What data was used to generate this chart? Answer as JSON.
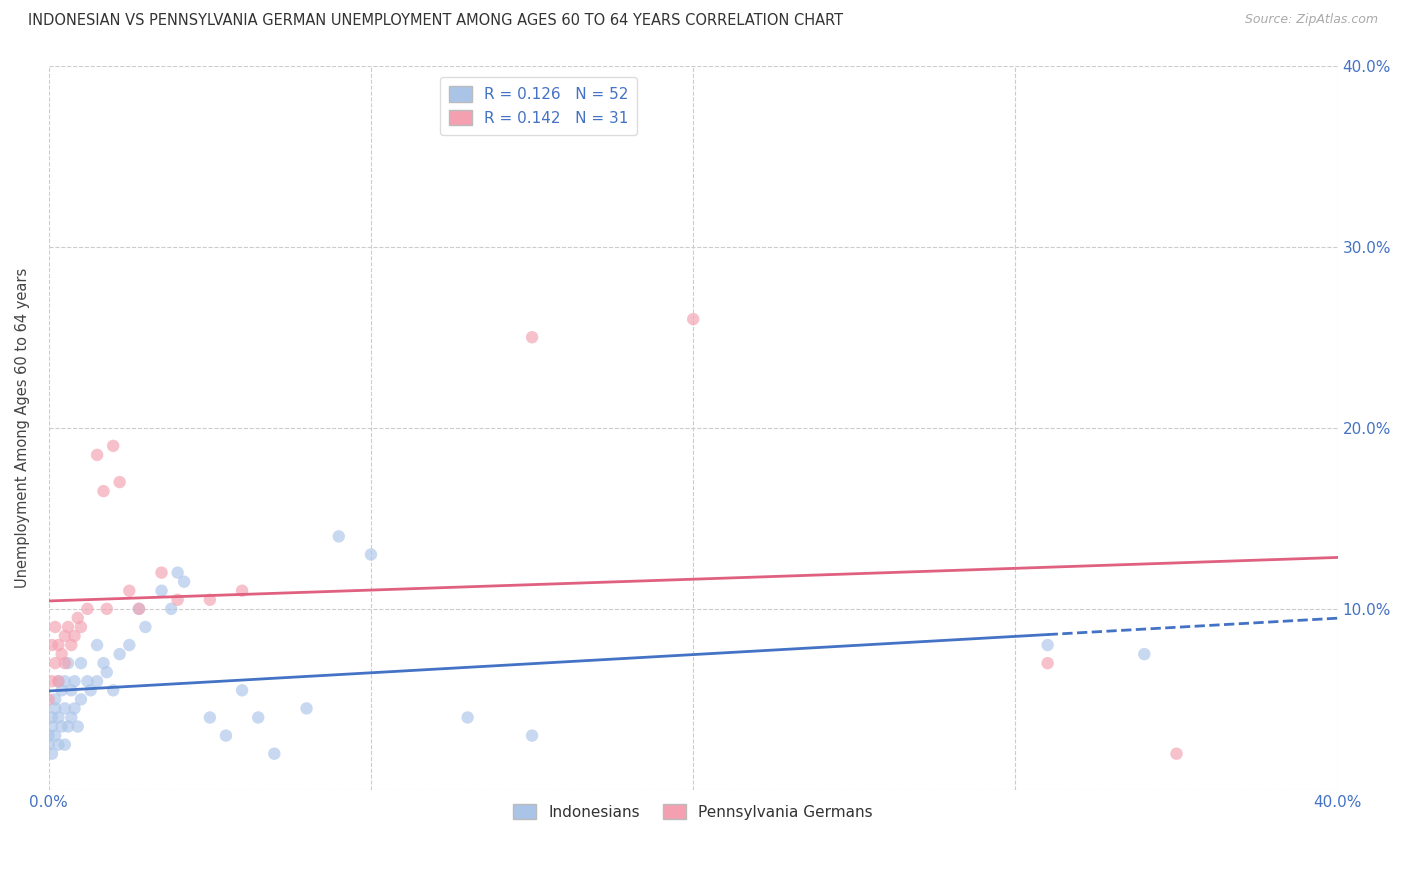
{
  "title": "INDONESIAN VS PENNSYLVANIA GERMAN UNEMPLOYMENT AMONG AGES 60 TO 64 YEARS CORRELATION CHART",
  "source": "Source: ZipAtlas.com",
  "ylabel": "Unemployment Among Ages 60 to 64 years",
  "xlim": [
    0.0,
    0.4
  ],
  "ylim": [
    0.0,
    0.4
  ],
  "xticks": [
    0.0,
    0.1,
    0.2,
    0.3,
    0.4
  ],
  "yticks": [
    0.0,
    0.1,
    0.2,
    0.3,
    0.4
  ],
  "xticklabels": [
    "0.0%",
    "",
    "",
    "",
    "40.0%"
  ],
  "yticklabels_right": [
    "",
    "10.0%",
    "20.0%",
    "30.0%",
    "40.0%"
  ],
  "background_color": "#ffffff",
  "grid_color": "#cccccc",
  "indonesian_color": "#aac4e8",
  "penn_german_color": "#f4a0b0",
  "indonesian_line_color": "#4472c4",
  "penn_german_line_color": "#e06080",
  "indonesian_R": 0.126,
  "indonesian_N": 52,
  "penn_german_R": 0.142,
  "penn_german_N": 31,
  "legend_labels": [
    "Indonesians",
    "Pennsylvania Germans"
  ],
  "indonesian_x": [
    0.0,
    0.0,
    0.001,
    0.001,
    0.001,
    0.002,
    0.002,
    0.002,
    0.003,
    0.003,
    0.003,
    0.004,
    0.004,
    0.005,
    0.005,
    0.005,
    0.006,
    0.006,
    0.007,
    0.007,
    0.008,
    0.008,
    0.009,
    0.01,
    0.01,
    0.012,
    0.013,
    0.015,
    0.015,
    0.017,
    0.018,
    0.02,
    0.022,
    0.025,
    0.028,
    0.03,
    0.035,
    0.038,
    0.04,
    0.042,
    0.05,
    0.055,
    0.06,
    0.065,
    0.07,
    0.08,
    0.09,
    0.1,
    0.13,
    0.15,
    0.31,
    0.34
  ],
  "indonesian_y": [
    0.03,
    0.025,
    0.04,
    0.02,
    0.035,
    0.05,
    0.03,
    0.045,
    0.025,
    0.06,
    0.04,
    0.055,
    0.035,
    0.06,
    0.045,
    0.025,
    0.07,
    0.035,
    0.055,
    0.04,
    0.06,
    0.045,
    0.035,
    0.07,
    0.05,
    0.06,
    0.055,
    0.08,
    0.06,
    0.07,
    0.065,
    0.055,
    0.075,
    0.08,
    0.1,
    0.09,
    0.11,
    0.1,
    0.12,
    0.115,
    0.04,
    0.03,
    0.055,
    0.04,
    0.02,
    0.045,
    0.14,
    0.13,
    0.04,
    0.03,
    0.08,
    0.075
  ],
  "penn_german_x": [
    0.0,
    0.001,
    0.001,
    0.002,
    0.002,
    0.003,
    0.003,
    0.004,
    0.005,
    0.005,
    0.006,
    0.007,
    0.008,
    0.009,
    0.01,
    0.012,
    0.015,
    0.017,
    0.018,
    0.02,
    0.022,
    0.025,
    0.028,
    0.035,
    0.04,
    0.05,
    0.06,
    0.15,
    0.2,
    0.31,
    0.35
  ],
  "penn_german_y": [
    0.05,
    0.08,
    0.06,
    0.09,
    0.07,
    0.06,
    0.08,
    0.075,
    0.085,
    0.07,
    0.09,
    0.08,
    0.085,
    0.095,
    0.09,
    0.1,
    0.185,
    0.165,
    0.1,
    0.19,
    0.17,
    0.11,
    0.1,
    0.12,
    0.105,
    0.105,
    0.11,
    0.25,
    0.26,
    0.07,
    0.02
  ],
  "marker_size": 80,
  "marker_alpha": 0.65,
  "line_width": 2.0,
  "indo_line_x_end": 0.31,
  "indo_line_x_dash_start": 0.31,
  "indo_line_x_dash_end": 0.4,
  "penn_line_x_end": 0.4
}
